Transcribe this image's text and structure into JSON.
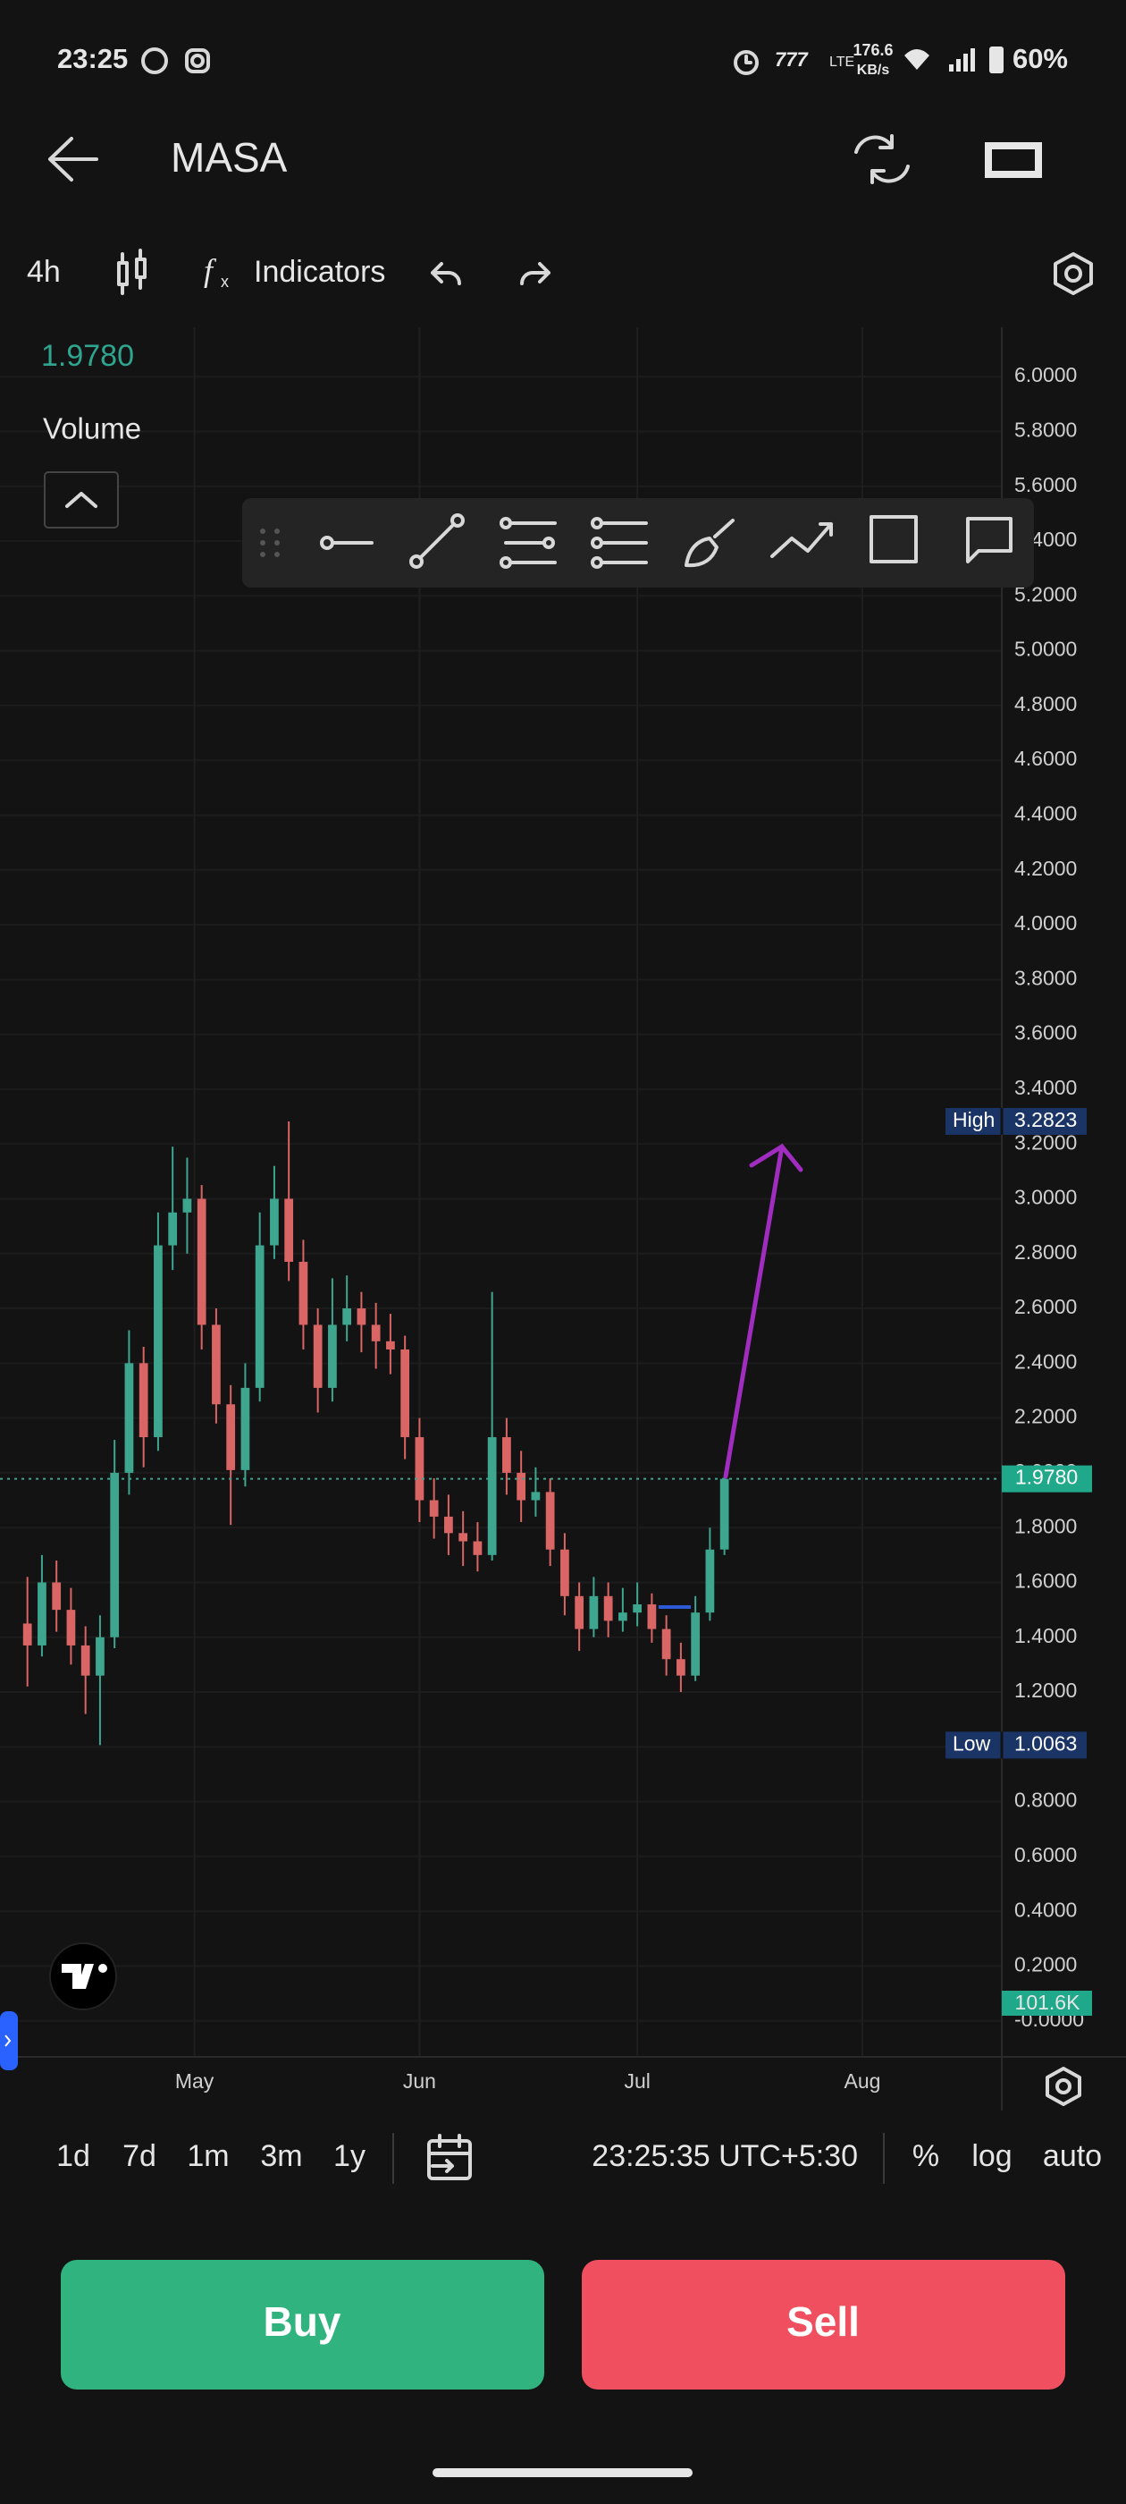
{
  "status_bar": {
    "time": "23:25",
    "network": "LTE",
    "speed": "176.6",
    "speed_unit": "KB/s",
    "battery": "60%"
  },
  "header": {
    "title": "MASA"
  },
  "toolbar": {
    "interval": "4h",
    "indicators": "Indicators"
  },
  "legend": {
    "volume": "Volume",
    "last_volume": "101.6K"
  },
  "chart_data": {
    "type": "candlestick",
    "up_color": "#3ea58f",
    "down_color": "#d96565",
    "grid": true,
    "log": false,
    "x": [
      7,
      9,
      11,
      13,
      15,
      17,
      19,
      21,
      23,
      25,
      27,
      29,
      31,
      33,
      35,
      37,
      39,
      41,
      43,
      45,
      47,
      49,
      51,
      53,
      55,
      57,
      59,
      61,
      63,
      65,
      67,
      69,
      71,
      73,
      75,
      77,
      79,
      81,
      83,
      85,
      87,
      89,
      91,
      93,
      95,
      97,
      99,
      101,
      103
    ],
    "open": [
      1.45,
      1.37,
      1.6,
      1.5,
      1.37,
      1.26,
      1.4,
      2.0,
      2.4,
      2.13,
      2.83,
      2.95,
      3.0,
      2.54,
      2.25,
      2.01,
      2.31,
      2.83,
      3.0,
      2.77,
      2.54,
      2.31,
      2.54,
      2.6,
      2.54,
      2.48,
      2.45,
      2.13,
      1.9,
      1.84,
      1.78,
      1.75,
      1.7,
      2.13,
      2.0,
      1.9,
      1.93,
      1.72,
      1.55,
      1.43,
      1.55,
      1.46,
      1.49,
      1.52,
      1.43,
      1.32,
      1.26,
      1.49,
      1.72
    ],
    "high": [
      1.62,
      1.7,
      1.68,
      1.58,
      1.44,
      1.48,
      2.12,
      2.52,
      2.46,
      2.95,
      3.19,
      3.15,
      3.05,
      2.6,
      2.32,
      2.4,
      2.95,
      3.12,
      3.2823,
      2.85,
      2.6,
      2.71,
      2.72,
      2.66,
      2.62,
      2.58,
      2.5,
      2.2,
      1.98,
      1.92,
      1.86,
      1.82,
      2.66,
      2.2,
      2.08,
      2.02,
      1.98,
      1.78,
      1.6,
      1.62,
      1.6,
      1.58,
      1.6,
      1.56,
      1.48,
      1.38,
      1.55,
      1.8,
      1.99
    ],
    "low": [
      1.22,
      1.33,
      1.42,
      1.3,
      1.12,
      1.0063,
      1.36,
      1.92,
      2.02,
      2.08,
      2.74,
      2.8,
      2.45,
      2.18,
      1.81,
      1.95,
      2.26,
      2.78,
      2.7,
      2.45,
      2.22,
      2.26,
      2.48,
      2.44,
      2.38,
      2.36,
      2.05,
      1.82,
      1.76,
      1.7,
      1.66,
      1.64,
      1.68,
      1.92,
      1.82,
      1.84,
      1.66,
      1.48,
      1.35,
      1.4,
      1.4,
      1.42,
      1.44,
      1.38,
      1.26,
      1.2,
      1.24,
      1.46,
      1.7
    ],
    "close": [
      1.37,
      1.6,
      1.5,
      1.37,
      1.26,
      1.4,
      2.0,
      2.4,
      2.13,
      2.83,
      2.95,
      3.0,
      2.54,
      2.25,
      2.01,
      2.31,
      2.83,
      3.0,
      2.77,
      2.54,
      2.31,
      2.54,
      2.6,
      2.54,
      2.48,
      2.45,
      2.13,
      1.9,
      1.84,
      1.78,
      1.75,
      1.7,
      2.13,
      2.0,
      1.9,
      1.93,
      1.72,
      1.55,
      1.43,
      1.55,
      1.46,
      1.49,
      1.52,
      1.43,
      1.32,
      1.26,
      1.49,
      1.72,
      1.978
    ],
    "xlim": [
      6.3,
      141.2
    ],
    "xticks": [
      {
        "value": 30,
        "label": "May"
      },
      {
        "value": 61,
        "label": "Jun"
      },
      {
        "value": 91,
        "label": "Jul"
      },
      {
        "value": 122,
        "label": "Aug"
      }
    ],
    "ylim": [
      -0.128,
      6.18
    ],
    "yticks": [
      {
        "value": 0,
        "label": "-0.0000"
      },
      {
        "value": 0.2,
        "label": "0.2000"
      },
      {
        "value": 0.4,
        "label": "0.4000"
      },
      {
        "value": 0.6,
        "label": "0.6000"
      },
      {
        "value": 0.8,
        "label": "0.8000"
      },
      {
        "value": 1,
        "label": "1.0000"
      },
      {
        "value": 1.2,
        "label": "1.2000"
      },
      {
        "value": 1.4,
        "label": "1.4000"
      },
      {
        "value": 1.6,
        "label": "1.6000"
      },
      {
        "value": 1.8,
        "label": "1.8000"
      },
      {
        "value": 2,
        "label": "2.0000"
      },
      {
        "value": 2.2,
        "label": "2.2000"
      },
      {
        "value": 2.4,
        "label": "2.4000"
      },
      {
        "value": 2.6,
        "label": "2.6000"
      },
      {
        "value": 2.8,
        "label": "2.8000"
      },
      {
        "value": 3,
        "label": "3.0000"
      },
      {
        "value": 3.2,
        "label": "3.2000"
      },
      {
        "value": 3.4,
        "label": "3.4000"
      },
      {
        "value": 3.6,
        "label": "3.6000"
      },
      {
        "value": 3.8,
        "label": "3.8000"
      },
      {
        "value": 4,
        "label": "4.0000"
      },
      {
        "value": 4.2,
        "label": "4.2000"
      },
      {
        "value": 4.4,
        "label": "4.4000"
      },
      {
        "value": 4.6,
        "label": "4.6000"
      },
      {
        "value": 4.8,
        "label": "4.8000"
      },
      {
        "value": 5,
        "label": "5.0000"
      },
      {
        "value": 5.2,
        "label": "5.2000"
      },
      {
        "value": 5.4,
        "label": "5.4000"
      },
      {
        "value": 5.6,
        "label": "5.6000"
      },
      {
        "value": 5.8,
        "label": "5.8000"
      },
      {
        "value": 6,
        "label": "6.0000"
      }
    ],
    "markers": [
      {
        "name": "High",
        "value": 3.2823
      },
      {
        "name": "Low",
        "value": 1.0063
      }
    ],
    "last_price": {
      "value": 1.978,
      "label": "1.9780"
    }
  },
  "range_bar": {
    "ranges": [
      "1d",
      "7d",
      "1m",
      "3m",
      "1y"
    ],
    "clock": "23:25:35 UTC+5:30",
    "options": [
      "%",
      "log",
      "auto"
    ]
  },
  "actions": {
    "buy": "Buy",
    "sell": "Sell"
  }
}
